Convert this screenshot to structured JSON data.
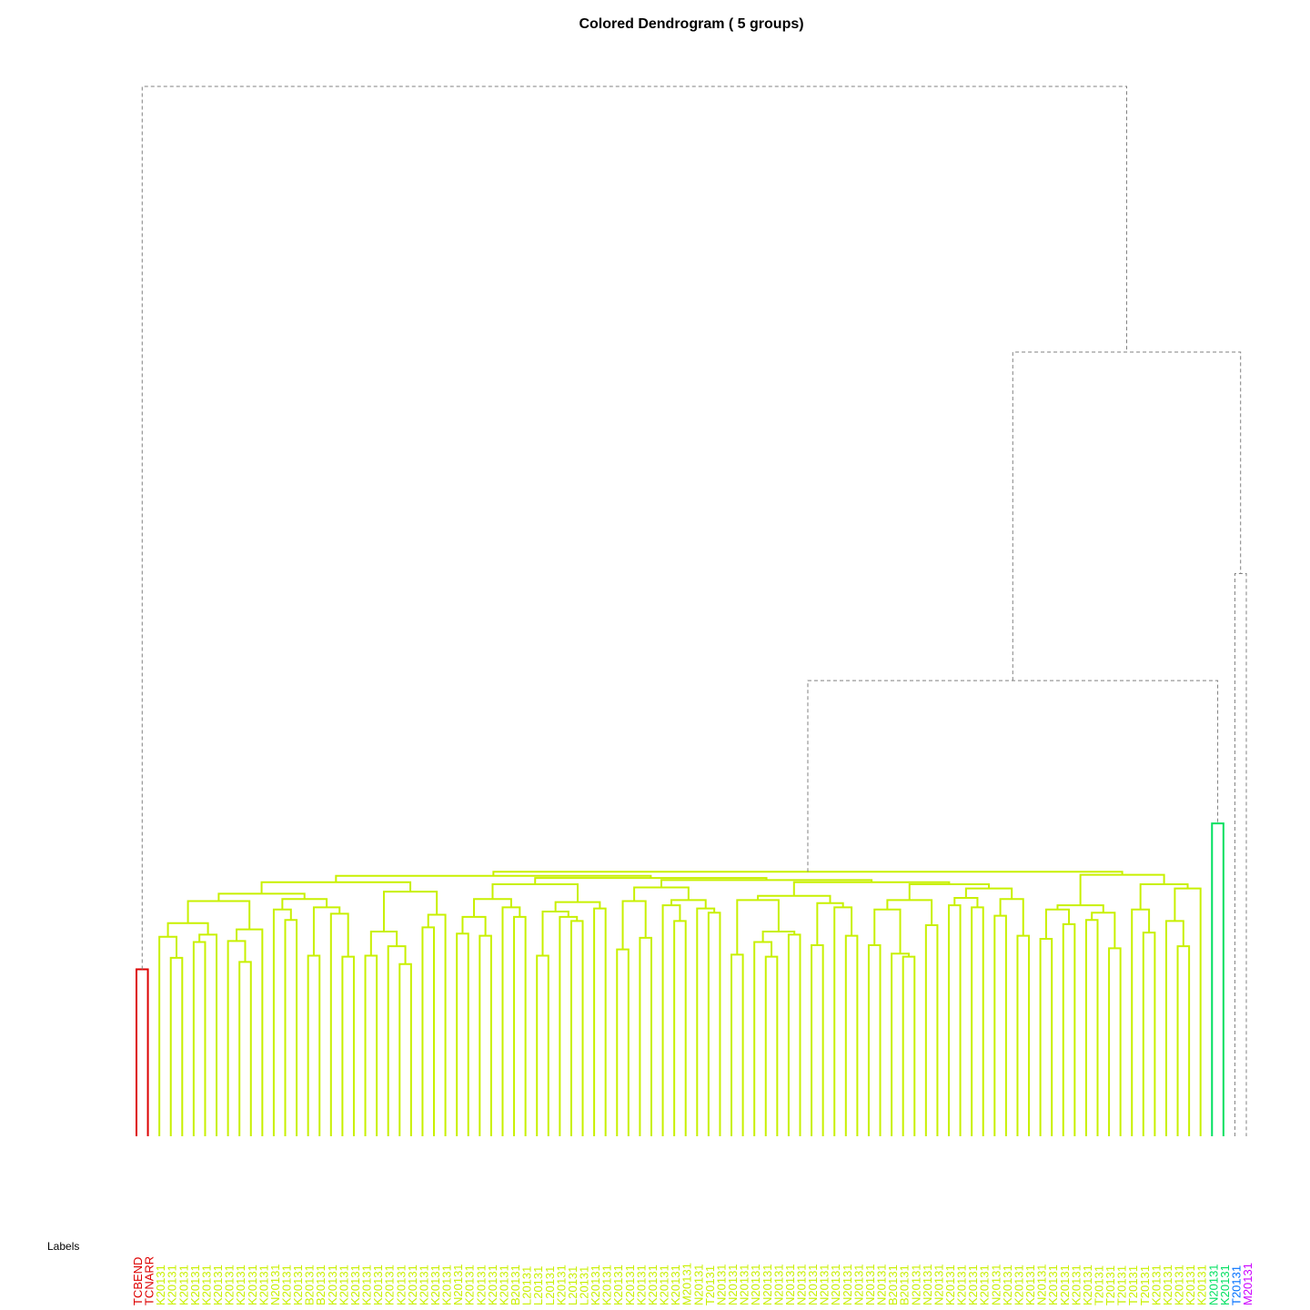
{
  "chart_data": {
    "type": "dendrogram",
    "title": "Colored Dendrogram ( 5  groups)",
    "xlabel": "Labels",
    "labels": [
      "TCBEND",
      "TCNARR",
      "K20131",
      "K20131",
      "K20131",
      "K20131",
      "K20131",
      "K20131",
      "K20131",
      "K20131",
      "K20131",
      "K20131",
      "N20131",
      "K20131",
      "K20131",
      "B20131",
      "B20131",
      "K20131",
      "K20131",
      "K20131",
      "K20131",
      "K20131",
      "K20131",
      "K20131",
      "K20131",
      "K20131",
      "K20131",
      "K20131",
      "N20131",
      "K20131",
      "K20131",
      "K20131",
      "K20131",
      "B20131",
      "L20131",
      "L20131",
      "L20131",
      "K20131",
      "L20131",
      "L20131",
      "K20131",
      "K20131",
      "K20131",
      "K20131",
      "K20131",
      "K20131",
      "K20131",
      "K20131",
      "M20131",
      "N20131",
      "T20131",
      "N20131",
      "N20131",
      "N20131",
      "N20131",
      "N20131",
      "N20131",
      "N20131",
      "N20131",
      "N20131",
      "N20131",
      "N20131",
      "N20131",
      "N20131",
      "N20131",
      "N20131",
      "B20131",
      "B20131",
      "N20131",
      "N20131",
      "N20131",
      "K20131",
      "K20131",
      "K20131",
      "K20131",
      "N20131",
      "K20131",
      "K20131",
      "K20131",
      "N20131",
      "K20131",
      "K20131",
      "K20131",
      "K20131",
      "T20131",
      "T20131",
      "T20131",
      "T20131",
      "T20131",
      "K20131",
      "K20131",
      "K20131",
      "K20131",
      "K20131",
      "N20131",
      "K20131",
      "T20131",
      "M20131"
    ],
    "groups": [
      {
        "color": "#dd0000",
        "first": 0,
        "last": 1
      },
      {
        "color": "#c8f000",
        "first": 2,
        "last": 93
      },
      {
        "color": "#00e060",
        "first": 94,
        "last": 95
      },
      {
        "color": "#0070ff",
        "first": 96,
        "last": 96
      },
      {
        "color": "#cc00ff",
        "first": 97,
        "last": 97
      }
    ],
    "ylim": [
      0,
      100
    ],
    "tree": [
      100,
      [
        15.9,
        0,
        1
      ],
      [
        74.7,
        [
          43.4,
          [
            25.2,
            [
              24.8,
              [
                24.2,
                [
                  23.1,
                  [
                    22.4,
                    [
                      20.3,
                      [
                        19.0,
                        2,
                        [
                          17.0,
                          3,
                          4
                        ]
                      ],
                      [
                        19.2,
                        [
                          18.5,
                          5,
                          6
                        ],
                        7
                      ]
                    ],
                    [
                      19.7,
                      [
                        18.6,
                        8,
                        [
                          16.6,
                          9,
                          10
                        ]
                      ],
                      11
                    ]
                  ],
                  [
                    22.6,
                    [
                      21.6,
                      12,
                      [
                        20.6,
                        13,
                        14
                      ]
                    ],
                    [
                      21.8,
                      [
                        17.2,
                        15,
                        16
                      ],
                      [
                        21.2,
                        17,
                        [
                          17.1,
                          18,
                          19
                        ]
                      ]
                    ]
                  ]
                ],
                [
                  23.3,
                  [
                    19.5,
                    [
                      17.2,
                      20,
                      21
                    ],
                    [
                      18.1,
                      22,
                      [
                        16.4,
                        23,
                        24
                      ]
                    ]
                  ],
                  [
                    21.1,
                    [
                      19.9,
                      25,
                      26
                    ],
                    27
                  ]
                ]
              ],
              [
                24.6,
                [
                  24.0,
                  [
                    22.6,
                    [
                      20.9,
                      [
                        19.3,
                        28,
                        29
                      ],
                      [
                        19.1,
                        30,
                        31
                      ]
                    ],
                    [
                      21.8,
                      32,
                      [
                        20.9,
                        33,
                        34
                      ]
                    ]
                  ],
                  [
                    22.3,
                    [
                      21.4,
                      [
                        17.2,
                        35,
                        36
                      ],
                      [
                        20.9,
                        37,
                        [
                          20.5,
                          38,
                          39
                        ]
                      ]
                    ],
                    [
                      21.7,
                      40,
                      41
                    ]
                  ]
                ],
                [
                  24.4,
                  [
                    23.7,
                    [
                      22.4,
                      [
                        17.8,
                        42,
                        43
                      ],
                      [
                        18.9,
                        44,
                        45
                      ]
                    ],
                    [
                      22.5,
                      [
                        22.0,
                        46,
                        [
                          20.5,
                          47,
                          48
                        ]
                      ],
                      [
                        21.7,
                        49,
                        [
                          21.3,
                          50,
                          51
                        ]
                      ]
                    ]
                  ],
                  [
                    24.2,
                    [
                      22.9,
                      [
                        22.5,
                        [
                          17.3,
                          52,
                          53
                        ],
                        [
                          19.5,
                          [
                            18.5,
                            54,
                            [
                              17.1,
                              55,
                              56
                            ]
                          ],
                          [
                            19.2,
                            57,
                            58
                          ]
                        ]
                      ],
                      [
                        22.2,
                        [
                          18.2,
                          59,
                          60
                        ],
                        [
                          21.8,
                          61,
                          [
                            19.1,
                            62,
                            63
                          ]
                        ]
                      ]
                    ],
                    [
                      24.0,
                      [
                        22.5,
                        [
                          21.6,
                          [
                            18.2,
                            64,
                            65
                          ],
                          [
                            17.4,
                            66,
                            [
                              17.1,
                              67,
                              68
                            ]
                          ]
                        ],
                        [
                          20.1,
                          69,
                          70
                        ]
                      ],
                      [
                        23.6,
                        [
                          22.7,
                          [
                            22.0,
                            71,
                            72
                          ],
                          [
                            21.8,
                            73,
                            74
                          ]
                        ],
                        [
                          22.6,
                          [
                            21.0,
                            75,
                            76
                          ],
                          [
                            19.1,
                            77,
                            78
                          ]
                        ]
                      ]
                    ]
                  ]
                ]
              ]
            ],
            [
              24.9,
              [
                22.0,
                [
                  21.6,
                  [
                    18.8,
                    79,
                    80
                  ],
                  [
                    20.2,
                    81,
                    82
                  ]
                ],
                [
                  21.3,
                  [
                    20.6,
                    83,
                    84
                  ],
                  [
                    17.9,
                    85,
                    86
                  ]
                ]
              ],
              [
                24.0,
                [
                  21.6,
                  87,
                  [
                    19.4,
                    88,
                    89
                  ]
                ],
                [
                  23.6,
                  [
                    20.5,
                    90,
                    [
                      18.1,
                      91,
                      92
                    ]
                  ],
                  93
                ]
              ]
            ]
          ],
          [
            29.8,
            94,
            95
          ]
        ],
        [
          53.6,
          96,
          97
        ]
      ]
    ]
  }
}
